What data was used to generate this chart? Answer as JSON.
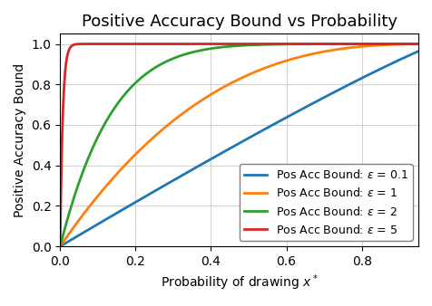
{
  "title": "Positive Accuracy Bound vs Probability",
  "xlabel": "Probability of drawing $x^*$",
  "ylabel": "Positive Accuracy Bound",
  "epsilons": [
    0.1,
    1,
    2,
    5
  ],
  "epsilon_labels": [
    "Pos Acc Bound: $\\varepsilon$ = 0.1",
    "Pos Acc Bound: $\\varepsilon$ = 1",
    "Pos Acc Bound: $\\varepsilon$ = 2",
    "Pos Acc Bound: $\\varepsilon$ = 5"
  ],
  "colors": [
    "#1f77b4",
    "#ff7f0e",
    "#2ca02c",
    "#d62728"
  ],
  "xlim": [
    0.0,
    0.95
  ],
  "ylim": [
    0.0,
    1.05
  ],
  "linewidth": 2.0,
  "grid": true,
  "legend_loc": "lower right",
  "title_fontsize": 13,
  "label_fontsize": 10,
  "legend_fontsize": 9
}
